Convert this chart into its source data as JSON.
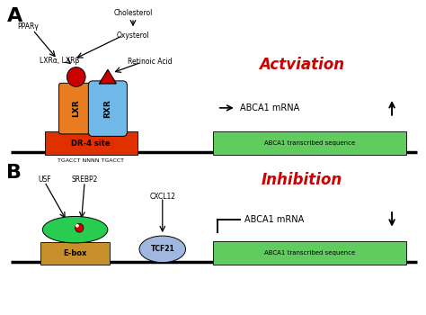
{
  "bg_color": "#ffffff",
  "panel_A_label": "A",
  "panel_B_label": "B",
  "activation_text": "Actviation",
  "inhibition_text": "Inhibition",
  "abca1_mrna_text": "ABCA1 mRNA",
  "abca1_transcribed": "ABCA1 transcribed sequence",
  "dr4_text": "DR-4 site",
  "dr4_seq": "TGACCT NNNN TGACCT",
  "ebox_text": "E-box",
  "tcf21_text": "TCF21",
  "lxr_text": "LXR",
  "rxr_text": "RXR",
  "cholesterol_text": "Cholesterol",
  "oxysterol_text": "Oxysterol",
  "retinoic_text": "Retinoic Acid",
  "ppary_text": "PPARγ",
  "lxrab_text": "LXRα, LXRβ",
  "usf_text": "USF",
  "srebp2_text": "SREBP2",
  "cxcl12_text": "CXCL12",
  "colors": {
    "dr4_rect": "#e03000",
    "lxr_body": "#e87c1e",
    "rxr_body": "#70b8e8",
    "lxr_ball": "#cc0000",
    "rxr_ball": "#cc0000",
    "ebox_rect": "#c8902a",
    "ebox_body": "#28cc50",
    "tcf21_body": "#a0b8e0",
    "red_dot": "#cc0000",
    "transcribed_box": "#60cc60",
    "activation_color": "#cc0000",
    "inhibition_color": "#cc0000",
    "line_color": "#000000"
  }
}
